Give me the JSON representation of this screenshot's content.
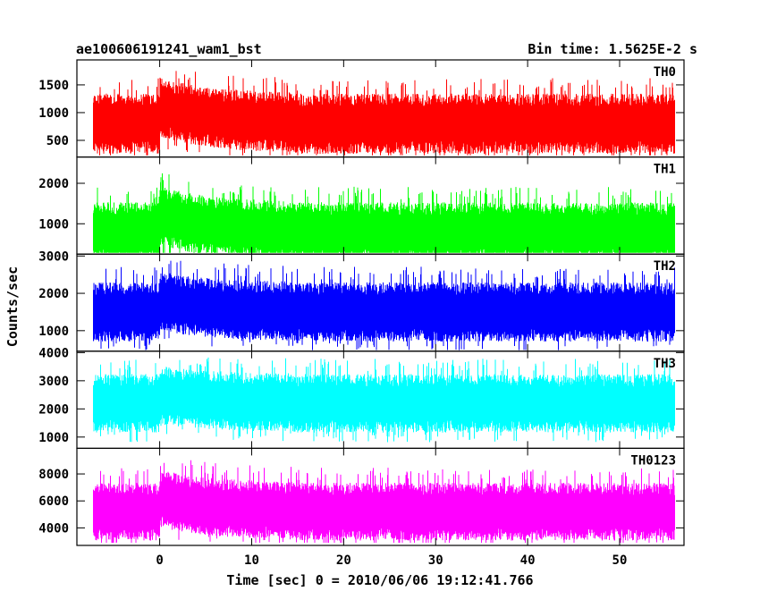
{
  "chart_data": {
    "type": "line",
    "title_left": "ae100606191241_wam1_bst",
    "title_right": "Bin time: 1.5625E-2 s",
    "xlabel": "Time [sec] 0 = 2010/06/06 19:12:41.766",
    "ylabel": "Counts/sec",
    "xlim": [
      -9,
      57
    ],
    "x_ticks": [
      0,
      10,
      20,
      30,
      40,
      50
    ],
    "x_tick_labels": [
      "0",
      "10",
      "20",
      "30",
      "40",
      "50"
    ],
    "data_x_range": [
      -7.2,
      56
    ],
    "burst_time": 0,
    "panels": [
      {
        "name": "TH0",
        "color": "#ff0000",
        "ylim": [
          200,
          1950
        ],
        "y_ticks": [
          500,
          1000,
          1500
        ],
        "y_tick_labels": [
          "500",
          "1000",
          "1500"
        ],
        "baseline_mean": 800,
        "burst_mean": 1100,
        "min": 230,
        "max": 1950
      },
      {
        "name": "TH1",
        "color": "#00ff00",
        "ylim": [
          250,
          2650
        ],
        "y_ticks": [
          1000,
          2000
        ],
        "y_tick_labels": [
          "1000",
          "2000"
        ],
        "baseline_mean": 800,
        "burst_mean": 1200,
        "min": 280,
        "max": 2600
      },
      {
        "name": "TH2",
        "color": "#0000ff",
        "ylim": [
          450,
          3050
        ],
        "y_ticks": [
          1000,
          2000,
          3000
        ],
        "y_tick_labels": [
          "1000",
          "2000",
          "3000"
        ],
        "baseline_mean": 1500,
        "burst_mean": 1800,
        "min": 480,
        "max": 3000
      },
      {
        "name": "TH3",
        "color": "#00ffff",
        "ylim": [
          600,
          4050
        ],
        "y_ticks": [
          1000,
          2000,
          3000,
          4000
        ],
        "y_tick_labels": [
          "1000",
          "2000",
          "3000",
          "4000"
        ],
        "baseline_mean": 2200,
        "burst_mean": 2500,
        "min": 700,
        "max": 4000
      },
      {
        "name": "TH0123",
        "color": "#ff00ff",
        "ylim": [
          2700,
          9900
        ],
        "y_ticks": [
          4000,
          6000,
          8000
        ],
        "y_tick_labels": [
          "4000",
          "6000",
          "8000"
        ],
        "baseline_mean": 5200,
        "burst_mean": 6200,
        "min": 2900,
        "max": 9700
      }
    ]
  }
}
